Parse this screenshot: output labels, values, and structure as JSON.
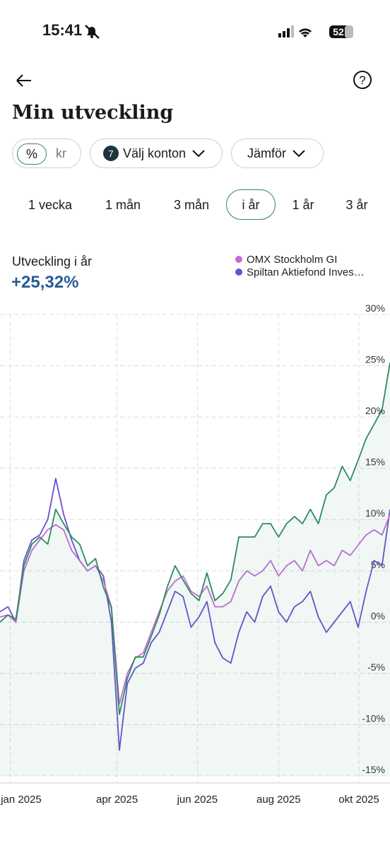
{
  "status_bar": {
    "time": "15:41",
    "battery": "52"
  },
  "header": {
    "title": "Min utveckling"
  },
  "filters": {
    "unit_options": [
      "%",
      "kr"
    ],
    "accounts_count": 7,
    "accounts_label": "Välj konton",
    "compare_label": "Jämför"
  },
  "periods": [
    "1 vecka",
    "1 mån",
    "3 mån",
    "i år",
    "1 år",
    "3 år"
  ],
  "summary": {
    "label": "Utveckling i år",
    "value": "+25,32%"
  },
  "chart_data": {
    "type": "line",
    "series": [
      {
        "color": "#2f8a5f",
        "fill": true,
        "values": [
          0,
          0.7,
          0.3,
          5.5,
          7.6,
          8.3,
          7.6,
          11,
          9.6,
          8.3,
          7.6,
          5.5,
          6.2,
          3.4,
          1.4,
          -9,
          -5.5,
          -3.4,
          -3.4,
          -1.4,
          0.7,
          3.4,
          5.5,
          4.1,
          2.8,
          2.1,
          4.8,
          2.1,
          2.8,
          4.1,
          8.3,
          8.3,
          8.3,
          9.6,
          9.6,
          8.3,
          9.6,
          10.3,
          9.6,
          11,
          9.6,
          12.4,
          13.1,
          15.2,
          13.8,
          15.8,
          17.9,
          19.3,
          20.7,
          25.3
        ]
      },
      {
        "name": "OMX Stockholm GI",
        "color": "#c46bd6",
        "values": [
          0.5,
          0.7,
          0,
          5,
          7,
          8,
          9,
          9.5,
          9,
          7,
          6,
          5,
          5.5,
          4,
          1.5,
          -8,
          -5,
          -3.5,
          -3,
          -1,
          1,
          3,
          4,
          4.5,
          3,
          2.5,
          3.5,
          1.5,
          1.5,
          2,
          4,
          5,
          4.5,
          5,
          6,
          4.5,
          5.5,
          6,
          5,
          7,
          5.5,
          6,
          5.5,
          7,
          6.5,
          7.5,
          8.5,
          9,
          8.5,
          10.5
        ]
      },
      {
        "name": "Spiltan Aktiefond Inves…",
        "color": "#6a4fd0",
        "values": [
          1,
          1.5,
          0,
          6,
          8,
          8.5,
          10,
          14,
          10.5,
          8,
          6,
          5,
          5.5,
          4.5,
          0,
          -12.5,
          -6,
          -4.5,
          -4,
          -2,
          -1,
          1,
          3,
          2.5,
          -0.5,
          0.5,
          2,
          -2,
          -3.5,
          -4,
          -1,
          1,
          0,
          2.5,
          3.5,
          1,
          0,
          1.5,
          2,
          3,
          0.5,
          -1,
          0,
          1,
          2,
          -0.5,
          3,
          6,
          5.5,
          11
        ]
      }
    ],
    "xlim": [
      0,
      49
    ],
    "xticks": [
      {
        "value": 1.3,
        "label": "jan 2025"
      },
      {
        "value": 14.7,
        "label": "apr 2025"
      },
      {
        "value": 24.8,
        "label": "jun 2025"
      },
      {
        "value": 35,
        "label": "aug 2025"
      },
      {
        "value": 45.1,
        "label": "okt 2025"
      }
    ],
    "ylim": [
      -15,
      30
    ],
    "yticks": [
      {
        "value": 30,
        "label": "30%"
      },
      {
        "value": 25,
        "label": "25%"
      },
      {
        "value": 20,
        "label": "20%"
      },
      {
        "value": 15,
        "label": "15%"
      },
      {
        "value": 10,
        "label": "10%"
      },
      {
        "value": 5,
        "label": "5%"
      },
      {
        "value": 0,
        "label": "0%"
      },
      {
        "value": -5,
        "label": "-5%"
      },
      {
        "value": -10,
        "label": "-10%"
      },
      {
        "value": -15,
        "label": "-15%"
      }
    ],
    "grid": true
  }
}
